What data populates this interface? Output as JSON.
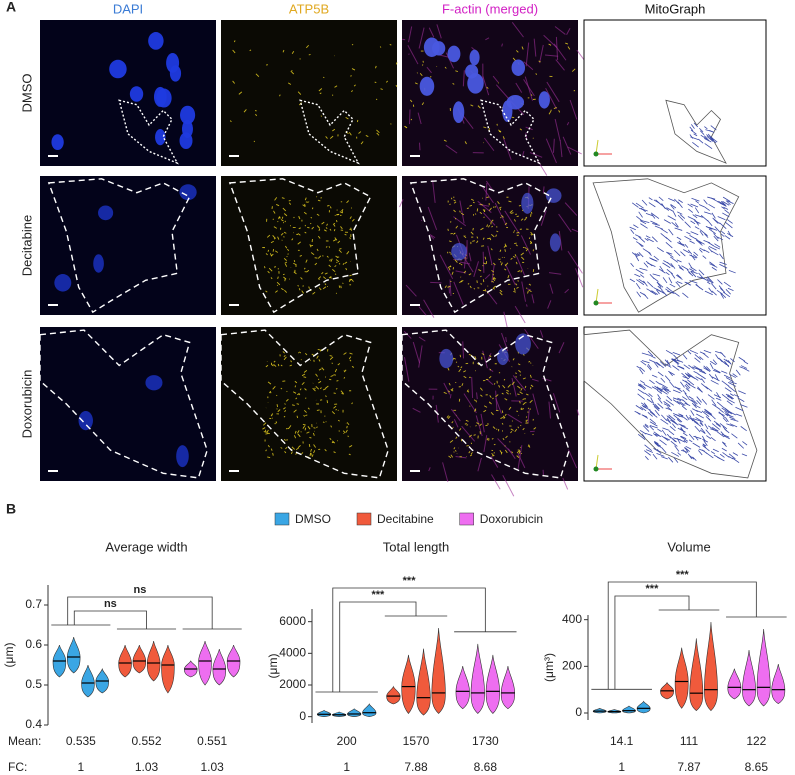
{
  "panel_a": {
    "label": "A",
    "columns": [
      "DAPI",
      "ATP5B",
      "F-actin (merged)",
      "MitoGraph"
    ],
    "rows": [
      "DMSO",
      "Decitabine",
      "Doxorubicin"
    ]
  },
  "panel_b": {
    "label": "B",
    "legend": [
      {
        "name": "DMSO",
        "color": "#3aa6e4"
      },
      {
        "name": "Decitabine",
        "color": "#f05a3c"
      },
      {
        "name": "Doxorubicin",
        "color": "#ee6ef0"
      }
    ],
    "mean_label": "Mean:",
    "fc_label": "FC:"
  },
  "chart_data": [
    {
      "type": "violin",
      "title": "Average width",
      "ylabel": "(μm)",
      "ylim": [
        0.4,
        0.75
      ],
      "yticks": [
        0.4,
        0.5,
        0.6,
        0.7
      ],
      "series": [
        {
          "values": [
            0.56,
            0.57,
            0.505,
            0.51
          ],
          "low": [
            0.52,
            0.53,
            0.47,
            0.48
          ],
          "high": [
            0.6,
            0.62,
            0.55,
            0.54
          ]
        },
        {
          "values": [
            0.555,
            0.56,
            0.555,
            0.55
          ],
          "low": [
            0.52,
            0.53,
            0.51,
            0.48
          ],
          "high": [
            0.6,
            0.6,
            0.61,
            0.6
          ]
        },
        {
          "values": [
            0.54,
            0.56,
            0.54,
            0.56
          ],
          "low": [
            0.52,
            0.5,
            0.5,
            0.52
          ],
          "high": [
            0.56,
            0.61,
            0.59,
            0.6
          ]
        }
      ],
      "significance": [
        "ns",
        "ns"
      ],
      "mean": [
        0.535,
        0.552,
        0.551
      ],
      "fc": [
        1,
        1.03,
        1.03
      ]
    },
    {
      "type": "violin",
      "title": "Total length",
      "ylabel": "(μm)",
      "ylim": [
        -400,
        6800
      ],
      "yticks": [
        0,
        2000,
        4000,
        6000
      ],
      "series": [
        {
          "values": [
            150,
            120,
            170,
            250
          ],
          "low": [
            0,
            0,
            0,
            0
          ],
          "high": [
            400,
            300,
            500,
            800
          ]
        },
        {
          "values": [
            1300,
            1900,
            1200,
            1500
          ],
          "low": [
            800,
            200,
            100,
            200
          ],
          "high": [
            1900,
            3900,
            4300,
            5600
          ]
        },
        {
          "values": [
            1600,
            1500,
            1600,
            1500
          ],
          "low": [
            500,
            200,
            200,
            500
          ],
          "high": [
            3200,
            4600,
            3900,
            3200
          ]
        }
      ],
      "significance": [
        "***",
        "***"
      ],
      "mean": [
        200,
        1570,
        1730
      ],
      "fc": [
        1,
        7.88,
        8.68
      ]
    },
    {
      "type": "violin",
      "title": "Volume",
      "ylabel": "(μm³)",
      "ylim": [
        -30,
        420
      ],
      "yticks": [
        0,
        200,
        400
      ],
      "series": [
        {
          "values": [
            8,
            6,
            10,
            20
          ],
          "low": [
            0,
            0,
            0,
            0
          ],
          "high": [
            20,
            15,
            30,
            50
          ]
        },
        {
          "values": [
            95,
            135,
            85,
            100
          ],
          "low": [
            60,
            20,
            10,
            10
          ],
          "high": [
            130,
            280,
            320,
            390
          ]
        },
        {
          "values": [
            110,
            100,
            110,
            100
          ],
          "low": [
            60,
            30,
            30,
            40
          ],
          "high": [
            190,
            270,
            360,
            210
          ]
        }
      ],
      "significance": [
        "***",
        "***"
      ],
      "mean": [
        14.1,
        111,
        122
      ],
      "fc": [
        1,
        7.87,
        8.65
      ]
    }
  ]
}
